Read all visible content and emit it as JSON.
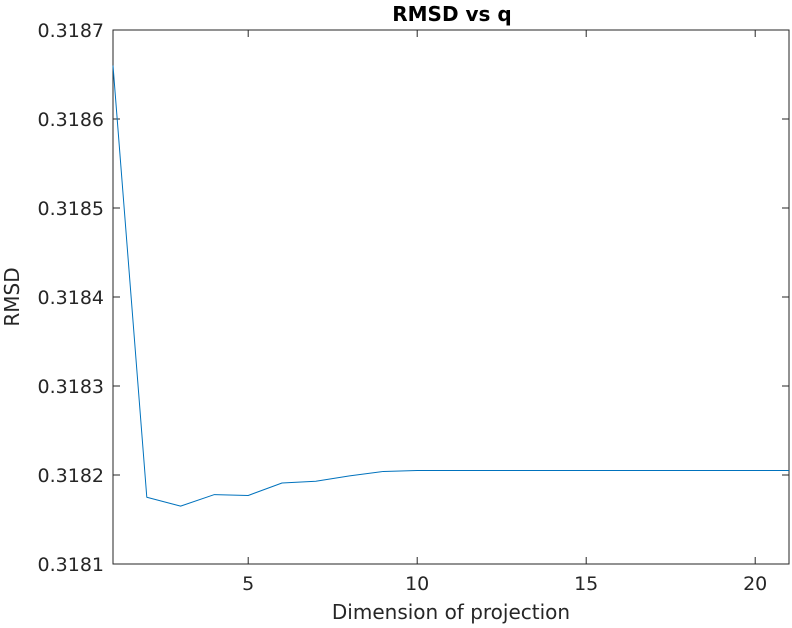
{
  "chart_data": {
    "type": "line",
    "title": "RMSD vs q",
    "xlabel": "Dimension of projection",
    "ylabel": "RMSD",
    "xlim": [
      1,
      21
    ],
    "ylim": [
      0.3181,
      0.3187
    ],
    "xticks": [
      5,
      10,
      15,
      20
    ],
    "yticks": [
      0.3181,
      0.3182,
      0.3183,
      0.3184,
      0.3185,
      0.3186,
      0.3187
    ],
    "ytick_labels": [
      "0.3181",
      "0.3182",
      "0.3183",
      "0.3184",
      "0.3185",
      "0.3186",
      "0.3187"
    ],
    "grid": false,
    "line_color": "#0072BD",
    "series": [
      {
        "x": [
          1,
          2,
          3,
          4,
          5,
          6,
          7,
          8,
          9,
          10,
          11,
          12,
          13,
          14,
          15,
          16,
          17,
          18,
          19,
          20,
          21
        ],
        "y": [
          0.31866,
          0.318175,
          0.318165,
          0.318178,
          0.318177,
          0.318191,
          0.318193,
          0.318199,
          0.318204,
          0.318205,
          0.318205,
          0.318205,
          0.318205,
          0.318205,
          0.318205,
          0.318205,
          0.318205,
          0.318205,
          0.318205,
          0.318205,
          0.318205
        ]
      }
    ]
  }
}
